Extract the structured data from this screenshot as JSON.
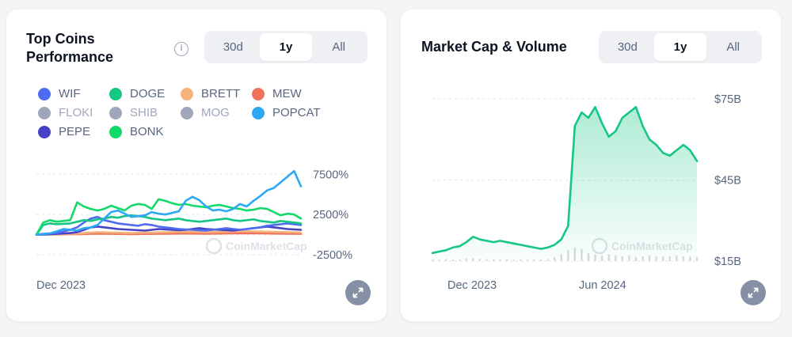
{
  "left": {
    "title": "Top Coins Performance",
    "info_icon": "info-icon",
    "tabs": [
      "30d",
      "1y",
      "All"
    ],
    "active_tab": "1y",
    "legend": [
      {
        "name": "WIF",
        "color": "#4f6cf0",
        "muted": false
      },
      {
        "name": "DOGE",
        "color": "#16c784",
        "muted": false
      },
      {
        "name": "BRETT",
        "color": "#f4b27c",
        "muted": false
      },
      {
        "name": "MEW",
        "color": "#f1735b",
        "muted": false
      },
      {
        "name": "FLOKI",
        "color": "#a1a7bb",
        "muted": true
      },
      {
        "name": "SHIB",
        "color": "#a1a7bb",
        "muted": true
      },
      {
        "name": "MOG",
        "color": "#a1a7bb",
        "muted": true
      },
      {
        "name": "POPCAT",
        "color": "#2ea7f5",
        "muted": false
      },
      {
        "name": "PEPE",
        "color": "#4542c6",
        "muted": false
      },
      {
        "name": "BONK",
        "color": "#13d96a",
        "muted": false
      }
    ],
    "watermark": "CoinMarketCap",
    "expand_icon": "expand-icon"
  },
  "right": {
    "title": "Market Cap & Volume",
    "tabs": [
      "30d",
      "1y",
      "All"
    ],
    "active_tab": "1y",
    "watermark": "CoinMarketCap",
    "expand_icon": "expand-icon"
  },
  "chart_data": [
    {
      "type": "line",
      "title": "Top Coins Performance",
      "y_unit": "%",
      "ylim": [
        -2500,
        9500
      ],
      "y_ticks": [
        7500,
        2500,
        -2500
      ],
      "y_tick_labels": [
        "7500%",
        "2500%",
        "-2500%"
      ],
      "x_tick_labels": [
        "Dec 2023"
      ],
      "x_count": 40,
      "grid": true,
      "legend_position": "top",
      "series": [
        {
          "name": "POPCAT",
          "color": "#2ea7f5",
          "values": [
            0,
            50,
            150,
            400,
            700,
            600,
            500,
            800,
            900,
            1200,
            2000,
            2800,
            3000,
            2600,
            2200,
            2300,
            2400,
            2800,
            2600,
            2500,
            2700,
            2900,
            4200,
            4700,
            4300,
            3500,
            3000,
            3100,
            2900,
            3200,
            3800,
            3500,
            4200,
            4800,
            5500,
            5800,
            6500,
            7200,
            7900,
            6000
          ]
        },
        {
          "name": "BONK",
          "color": "#13d96a",
          "values": [
            0,
            1500,
            1800,
            1600,
            1700,
            1800,
            4000,
            3500,
            3200,
            3000,
            3200,
            3600,
            3300,
            3000,
            3600,
            3800,
            3700,
            3200,
            4400,
            4200,
            3900,
            3700,
            3800,
            3600,
            3500,
            3400,
            3600,
            3700,
            3500,
            3300,
            3200,
            3000,
            3100,
            3300,
            3200,
            2800,
            2400,
            2600,
            2500,
            2000
          ]
        },
        {
          "name": "DOGE",
          "color": "#16c784",
          "values": [
            0,
            1200,
            1400,
            1300,
            1350,
            1400,
            1600,
            1800,
            1700,
            1900,
            2000,
            2200,
            2100,
            2300,
            2400,
            2300,
            2200,
            2000,
            1900,
            1800,
            1900,
            2000,
            1800,
            1700,
            1600,
            1700,
            1800,
            1900,
            2000,
            1800,
            1700,
            1800,
            1900,
            1700,
            1600,
            1500,
            1700,
            1600,
            1500,
            1400
          ]
        },
        {
          "name": "WIF",
          "color": "#4f6cf0",
          "values": [
            0,
            100,
            150,
            200,
            400,
            600,
            900,
            1500,
            2000,
            2200,
            1800,
            1600,
            1400,
            1300,
            1200,
            1100,
            1300,
            1200,
            1000,
            900,
            800,
            700,
            650,
            600,
            550,
            500,
            600,
            700,
            800,
            700,
            600,
            700,
            800,
            900,
            1100,
            1200,
            1300,
            1400,
            1300,
            1200
          ]
        },
        {
          "name": "PEPE",
          "color": "#4542c6",
          "values": [
            0,
            20,
            50,
            100,
            150,
            200,
            300,
            600,
            900,
            1000,
            900,
            800,
            700,
            650,
            600,
            550,
            500,
            600,
            700,
            650,
            600,
            550,
            600,
            700,
            800,
            700,
            650,
            600,
            550,
            500,
            600,
            700,
            800,
            900,
            1000,
            900,
            800,
            700,
            650,
            600
          ]
        },
        {
          "name": "BRETT",
          "color": "#f4b27c",
          "values": [
            0,
            20,
            40,
            60,
            80,
            100,
            150,
            200,
            250,
            300,
            280,
            260,
            240,
            220,
            200,
            220,
            240,
            260,
            280,
            300,
            320,
            340,
            360,
            340,
            320,
            300,
            320,
            340,
            360,
            380,
            400,
            420,
            400,
            380,
            360,
            340,
            320,
            300,
            280,
            260
          ]
        },
        {
          "name": "MEW",
          "color": "#f1735b",
          "values": [
            0,
            10,
            20,
            30,
            40,
            50,
            60,
            80,
            100,
            120,
            110,
            100,
            90,
            80,
            70,
            80,
            90,
            100,
            110,
            120,
            130,
            140,
            150,
            140,
            130,
            120,
            130,
            140,
            150,
            160,
            170,
            180,
            170,
            160,
            150,
            140,
            130,
            120,
            110,
            100
          ]
        }
      ]
    },
    {
      "type": "area",
      "title": "Market Cap & Volume",
      "y_unit": "$B",
      "ylim": [
        15,
        75
      ],
      "y_ticks": [
        75,
        45,
        15
      ],
      "y_tick_labels": [
        "$75B",
        "$45B",
        "$15B"
      ],
      "x_tick_labels": [
        "Dec 2023",
        "Jun 2024"
      ],
      "x_count": 40,
      "grid": true,
      "series": [
        {
          "name": "Market Cap",
          "color": "#16c784",
          "values": [
            18,
            18.5,
            19,
            20,
            20.5,
            22,
            24,
            23,
            22.5,
            22,
            22.5,
            22,
            21.5,
            21,
            20.5,
            20,
            19.5,
            20,
            21,
            23,
            28,
            65,
            70,
            68,
            72,
            66,
            61,
            63,
            68,
            70,
            72,
            65,
            60,
            58,
            55,
            54,
            56,
            58,
            56,
            52
          ]
        },
        {
          "name": "Volume",
          "color": "#d6dae1",
          "values": [
            15.5,
            15.5,
            15.8,
            15.6,
            15.7,
            15.9,
            16.0,
            15.8,
            15.7,
            15.6,
            15.7,
            15.6,
            15.5,
            15.6,
            15.5,
            15.6,
            15.7,
            15.8,
            16.5,
            17.5,
            19,
            20,
            19.5,
            18,
            17.5,
            17,
            17.5,
            17,
            16.8,
            17,
            16.5,
            16.8,
            17,
            16.7,
            16.6,
            16.8,
            17,
            16.7,
            16.6,
            16.5
          ]
        }
      ]
    }
  ]
}
